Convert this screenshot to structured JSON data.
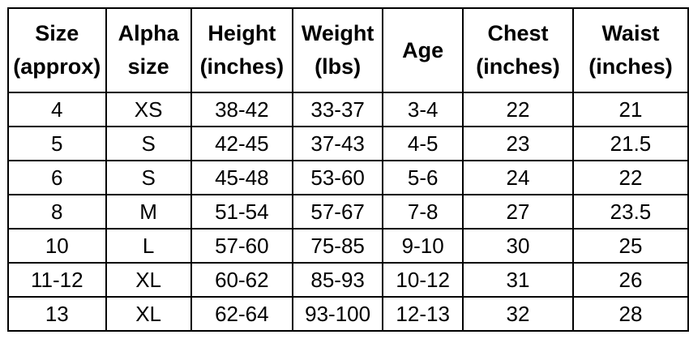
{
  "headers": [
    {
      "line1": "Size",
      "line2": "(approx)"
    },
    {
      "line1": "Alpha",
      "line2": "size"
    },
    {
      "line1": "Height",
      "line2": "(inches)"
    },
    {
      "line1": "Weight",
      "line2": "(lbs)"
    },
    {
      "line1": "Age",
      "line2": ""
    },
    {
      "line1": "Chest",
      "line2": "(inches)"
    },
    {
      "line1": "Waist",
      "line2": "(inches)"
    }
  ],
  "rows": [
    [
      "4",
      "XS",
      "38-42",
      "33-37",
      "3-4",
      "22",
      "21"
    ],
    [
      "5",
      "S",
      "42-45",
      "37-43",
      "4-5",
      "23",
      "21.5"
    ],
    [
      "6",
      "S",
      "45-48",
      "53-60",
      "5-6",
      "24",
      "22"
    ],
    [
      "8",
      "M",
      "51-54",
      "57-67",
      "7-8",
      "27",
      "23.5"
    ],
    [
      "10",
      "L",
      "57-60",
      "75-85",
      "9-10",
      "30",
      "25"
    ],
    [
      "11-12",
      "XL",
      "60-62",
      "85-93",
      "10-12",
      "31",
      "26"
    ],
    [
      "13",
      "XL",
      "62-64",
      "93-100",
      "12-13",
      "32",
      "28"
    ]
  ]
}
